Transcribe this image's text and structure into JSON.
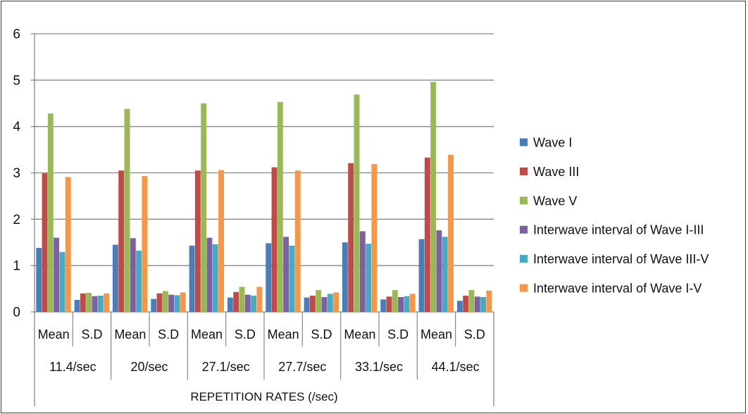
{
  "chart_data": {
    "type": "bar",
    "title": "",
    "xlabel": "REPETITION RATES (/sec)",
    "ylabel": "",
    "ylim": [
      0,
      6
    ],
    "yticks": [
      0,
      1,
      2,
      3,
      4,
      5,
      6
    ],
    "grid": "horizontal",
    "legend_position": "right",
    "groups": [
      "11.4/sec",
      "20/sec",
      "27.1/sec",
      "27.7/sec",
      "33.1/sec",
      "44.1/sec"
    ],
    "sub_categories": [
      "Mean",
      "S.D"
    ],
    "series": [
      {
        "name": "Wave I",
        "color": "#4a7ebb",
        "values": [
          1.38,
          0.26,
          1.45,
          0.28,
          1.43,
          0.31,
          1.48,
          0.31,
          1.5,
          0.27,
          1.57,
          0.24
        ]
      },
      {
        "name": "Wave III",
        "color": "#be4b48",
        "values": [
          2.99,
          0.4,
          3.05,
          0.4,
          3.05,
          0.43,
          3.12,
          0.35,
          3.21,
          0.33,
          3.33,
          0.35
        ]
      },
      {
        "name": "Wave V",
        "color": "#98b954",
        "values": [
          4.28,
          0.41,
          4.38,
          0.45,
          4.5,
          0.54,
          4.53,
          0.47,
          4.69,
          0.47,
          4.96,
          0.47
        ]
      },
      {
        "name": "Interwave interval of Wave I-III",
        "color": "#7d60a0",
        "values": [
          1.6,
          0.34,
          1.59,
          0.37,
          1.6,
          0.37,
          1.62,
          0.32,
          1.74,
          0.32,
          1.76,
          0.33
        ]
      },
      {
        "name": "Interwave interval of Wave III-V",
        "color": "#46aac5",
        "values": [
          1.29,
          0.35,
          1.32,
          0.36,
          1.46,
          0.35,
          1.43,
          0.39,
          1.47,
          0.34,
          1.62,
          0.32
        ]
      },
      {
        "name": "Interwave interval of Wave I-V",
        "color": "#f79646",
        "values": [
          2.91,
          0.4,
          2.93,
          0.42,
          3.06,
          0.54,
          3.05,
          0.42,
          3.19,
          0.39,
          3.39,
          0.46
        ]
      }
    ]
  },
  "colors": {
    "gridline": "#878787",
    "axis": "#878787",
    "frame": "#3a3a3a"
  }
}
